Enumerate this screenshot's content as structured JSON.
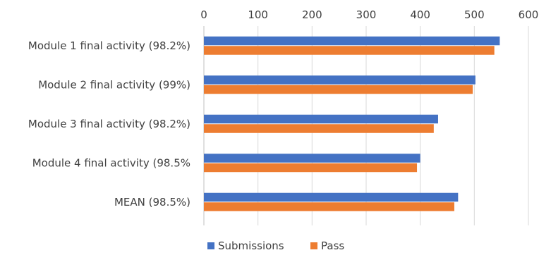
{
  "chart_data": {
    "type": "bar",
    "orientation": "horizontal",
    "categories": [
      "Module 1 final activity (98.2%)",
      "Module 2 final activity (99%)",
      "Module 3 final activity (98.2%)",
      "Module 4 final activity (98.5%",
      "MEAN (98.5%)"
    ],
    "series": [
      {
        "name": "Submissions",
        "color": "#4472C4",
        "values": [
          547,
          502,
          433,
          400,
          470
        ]
      },
      {
        "name": "Pass",
        "color": "#ED7D31",
        "values": [
          537,
          497,
          425,
          394,
          463
        ]
      }
    ],
    "xlim": [
      0,
      600
    ],
    "xticks": [
      "0",
      "100",
      "200",
      "300",
      "400",
      "500",
      "600"
    ],
    "x_axis_position": "top",
    "grid": true,
    "legend_position": "bottom"
  }
}
